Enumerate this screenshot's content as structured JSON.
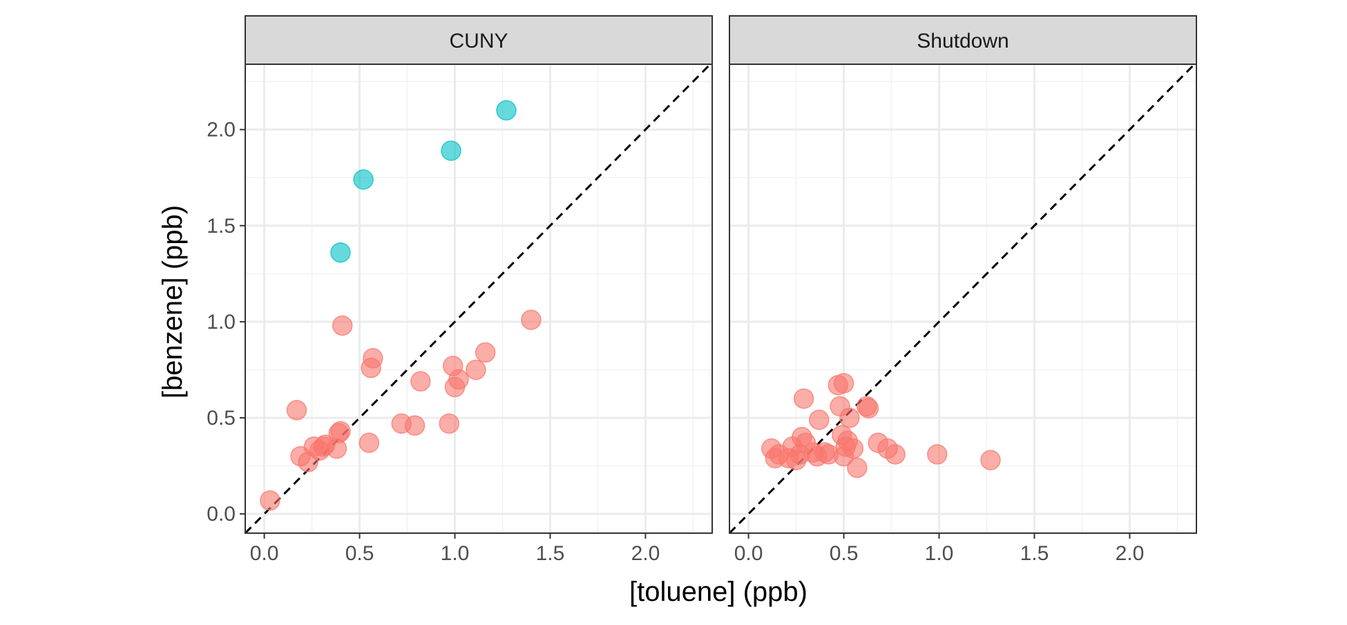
{
  "chart_data": {
    "type": "scatter",
    "title": "",
    "xlabel": "[toluene] (ppb)",
    "ylabel": "[benzene] (ppb)",
    "xlim": [
      -0.1,
      2.35
    ],
    "ylim": [
      -0.1,
      2.34
    ],
    "x_ticks": [
      "0.0",
      "0.5",
      "1.0",
      "1.5",
      "2.0"
    ],
    "y_ticks": [
      "0.0",
      "0.5",
      "1.0",
      "1.5",
      "2.0"
    ],
    "grid": true,
    "reference_line": "y = x (dashed)",
    "legend": "none",
    "colors": {
      "group_a": "#F8766D",
      "group_b": "#00BFC4"
    },
    "facets": [
      {
        "label": "CUNY",
        "series": [
          {
            "color": "#F8766D",
            "points": [
              [
                0.03,
                0.07
              ],
              [
                0.17,
                0.54
              ],
              [
                0.19,
                0.3
              ],
              [
                0.23,
                0.27
              ],
              [
                0.26,
                0.35
              ],
              [
                0.29,
                0.33
              ],
              [
                0.31,
                0.35
              ],
              [
                0.32,
                0.36
              ],
              [
                0.38,
                0.34
              ],
              [
                0.39,
                0.42
              ],
              [
                0.4,
                0.43
              ],
              [
                0.41,
                0.98
              ],
              [
                0.55,
                0.37
              ],
              [
                0.56,
                0.76
              ],
              [
                0.57,
                0.81
              ],
              [
                0.72,
                0.47
              ],
              [
                0.79,
                0.46
              ],
              [
                0.82,
                0.69
              ],
              [
                0.97,
                0.47
              ],
              [
                0.99,
                0.77
              ],
              [
                1.0,
                0.66
              ],
              [
                1.02,
                0.7
              ],
              [
                1.11,
                0.75
              ],
              [
                1.16,
                0.84
              ],
              [
                1.4,
                1.01
              ]
            ]
          },
          {
            "color": "#00BFC4",
            "points": [
              [
                0.4,
                1.36
              ],
              [
                0.52,
                1.74
              ],
              [
                0.98,
                1.89
              ],
              [
                1.27,
                2.1
              ]
            ]
          }
        ]
      },
      {
        "label": "Shutdown",
        "series": [
          {
            "color": "#F8766D",
            "points": [
              [
                0.12,
                0.34
              ],
              [
                0.14,
                0.29
              ],
              [
                0.16,
                0.31
              ],
              [
                0.21,
                0.29
              ],
              [
                0.23,
                0.35
              ],
              [
                0.25,
                0.28
              ],
              [
                0.27,
                0.31
              ],
              [
                0.28,
                0.4
              ],
              [
                0.29,
                0.6
              ],
              [
                0.3,
                0.37
              ],
              [
                0.34,
                0.32
              ],
              [
                0.36,
                0.3
              ],
              [
                0.37,
                0.49
              ],
              [
                0.4,
                0.32
              ],
              [
                0.42,
                0.31
              ],
              [
                0.47,
                0.67
              ],
              [
                0.48,
                0.56
              ],
              [
                0.49,
                0.41
              ],
              [
                0.5,
                0.68
              ],
              [
                0.5,
                0.3
              ],
              [
                0.51,
                0.35
              ],
              [
                0.52,
                0.38
              ],
              [
                0.53,
                0.5
              ],
              [
                0.55,
                0.34
              ],
              [
                0.57,
                0.24
              ],
              [
                0.62,
                0.56
              ],
              [
                0.63,
                0.55
              ],
              [
                0.68,
                0.37
              ],
              [
                0.73,
                0.34
              ],
              [
                0.77,
                0.31
              ],
              [
                0.99,
                0.31
              ],
              [
                1.27,
                0.28
              ]
            ]
          }
        ]
      }
    ]
  }
}
